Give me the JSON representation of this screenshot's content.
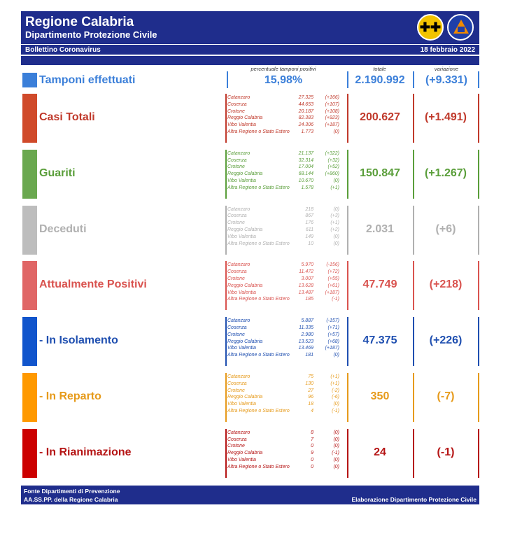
{
  "header": {
    "title": "Regione Calabria",
    "subtitle": "Dipartimento Protezione Civile",
    "bulletin": "Bollettino Coronavirus",
    "date": "18 febbraio 2022",
    "logo_region_glyph": "✚✚",
    "colors": {
      "navy": "#1f2d8c"
    }
  },
  "columns": {
    "percent": "percentuale tamponi positivi",
    "total": "totale",
    "change": "variazione"
  },
  "tamponi": {
    "label": "Tamponi effettuati",
    "percent": "15,98%",
    "total": "2.190.992",
    "change": "(+9.331)",
    "color": "#3b7fd9"
  },
  "rows": [
    {
      "label": "Casi Totali",
      "total": "200.627",
      "change": "(+1.491)",
      "color": "#c0392b",
      "marker": "#d04a2a",
      "provinces": [
        {
          "name": "Catanzaro",
          "value": "27.325",
          "delta": "(+166)"
        },
        {
          "name": "Cosenza",
          "value": "44.653",
          "delta": "(+107)"
        },
        {
          "name": "Crotone",
          "value": "20.187",
          "delta": "(+108)"
        },
        {
          "name": "Reggio Calabria",
          "value": "82.383",
          "delta": "(+923)"
        },
        {
          "name": "Vibo Valentia",
          "value": "24.306",
          "delta": "(+187)"
        },
        {
          "name": "Altra Regione o Stato Estero",
          "value": "1.773",
          "delta": "(0)"
        }
      ]
    },
    {
      "label": "Guariti",
      "total": "150.847",
      "change": "(+1.267)",
      "color": "#5a9e3a",
      "marker": "#6aa84f",
      "provinces": [
        {
          "name": "Catanzaro",
          "value": "21.137",
          "delta": "(+322)"
        },
        {
          "name": "Cosenza",
          "value": "32.314",
          "delta": "(+32)"
        },
        {
          "name": "Crotone",
          "value": "17.004",
          "delta": "(+52)"
        },
        {
          "name": "Reggio Calabria",
          "value": "68.144",
          "delta": "(+860)"
        },
        {
          "name": "Vibo Valentia",
          "value": "10.670",
          "delta": "(0)"
        },
        {
          "name": "Altra Regione o Stato Estero",
          "value": "1.578",
          "delta": "(+1)"
        }
      ]
    },
    {
      "label": "Deceduti",
      "total": "2.031",
      "change": "(+6)",
      "color": "#b0b0b0",
      "marker": "#bdbdbd",
      "provinces": [
        {
          "name": "Catanzaro",
          "value": "218",
          "delta": "(0)"
        },
        {
          "name": "Cosenza",
          "value": "867",
          "delta": "(+3)"
        },
        {
          "name": "Crotone",
          "value": "176",
          "delta": "(+1)"
        },
        {
          "name": "Reggio Calabria",
          "value": "611",
          "delta": "(+2)"
        },
        {
          "name": "Vibo Valentia",
          "value": "149",
          "delta": "(0)"
        },
        {
          "name": "Altra Regione o Stato Estero",
          "value": "10",
          "delta": "(0)"
        }
      ]
    },
    {
      "label": "Attualmente Positivi",
      "total": "47.749",
      "change": "(+218)",
      "color": "#d9534f",
      "marker": "#e06666",
      "provinces": [
        {
          "name": "Catanzaro",
          "value": "5.970",
          "delta": "(-156)"
        },
        {
          "name": "Cosenza",
          "value": "11.472",
          "delta": "(+72)"
        },
        {
          "name": "Crotone",
          "value": "3.007",
          "delta": "(+55)"
        },
        {
          "name": "Reggio Calabria",
          "value": "13.628",
          "delta": "(+61)"
        },
        {
          "name": "Vibo Valentia",
          "value": "13.487",
          "delta": "(+187)"
        },
        {
          "name": "Altra Regione o Stato Estero",
          "value": "185",
          "delta": "(-1)"
        }
      ]
    },
    {
      "label": "- In Isolamento",
      "total": "47.375",
      "change": "(+226)",
      "color": "#1f4fb0",
      "marker": "#1155cc",
      "provinces": [
        {
          "name": "Catanzaro",
          "value": "5.887",
          "delta": "(-157)"
        },
        {
          "name": "Cosenza",
          "value": "11.335",
          "delta": "(+71)"
        },
        {
          "name": "Crotone",
          "value": "2.980",
          "delta": "(+57)"
        },
        {
          "name": "Reggio Calabria",
          "value": "13.523",
          "delta": "(+68)"
        },
        {
          "name": "Vibo Valentia",
          "value": "13.469",
          "delta": "(+187)"
        },
        {
          "name": "Altra Regione o Stato Estero",
          "value": "181",
          "delta": "(0)"
        }
      ]
    },
    {
      "label": "- In Reparto",
      "total": "350",
      "change": "(-7)",
      "color": "#e69a1a",
      "marker": "#ff9900",
      "provinces": [
        {
          "name": "Catanzaro",
          "value": "75",
          "delta": "(+1)"
        },
        {
          "name": "Cosenza",
          "value": "130",
          "delta": "(+1)"
        },
        {
          "name": "Crotone",
          "value": "27",
          "delta": "(-2)"
        },
        {
          "name": "Reggio Calabria",
          "value": "96",
          "delta": "(-6)"
        },
        {
          "name": "Vibo Valentia",
          "value": "18",
          "delta": "(0)"
        },
        {
          "name": "Altra Regione o Stato Estero",
          "value": "4",
          "delta": "(-1)"
        }
      ]
    },
    {
      "label": "- In Rianimazione",
      "total": "24",
      "change": "(-1)",
      "color": "#b51414",
      "marker": "#cc0000",
      "provinces": [
        {
          "name": "Catanzaro",
          "value": "8",
          "delta": "(0)"
        },
        {
          "name": "Cosenza",
          "value": "7",
          "delta": "(0)"
        },
        {
          "name": "Crotone",
          "value": "0",
          "delta": "(0)"
        },
        {
          "name": "Reggio Calabria",
          "value": "9",
          "delta": "(-1)"
        },
        {
          "name": "Vibo Valentia",
          "value": "0",
          "delta": "(0)"
        },
        {
          "name": "Altra Regione o Stato Estero",
          "value": "0",
          "delta": "(0)"
        }
      ]
    }
  ],
  "footer": {
    "line1": "Fonte Dipartimenti di Prevenzione",
    "line2": "AA.SS.PP.  della Regione Calabria",
    "right": "Elaborazione Dipartimento Protezione Civile"
  }
}
